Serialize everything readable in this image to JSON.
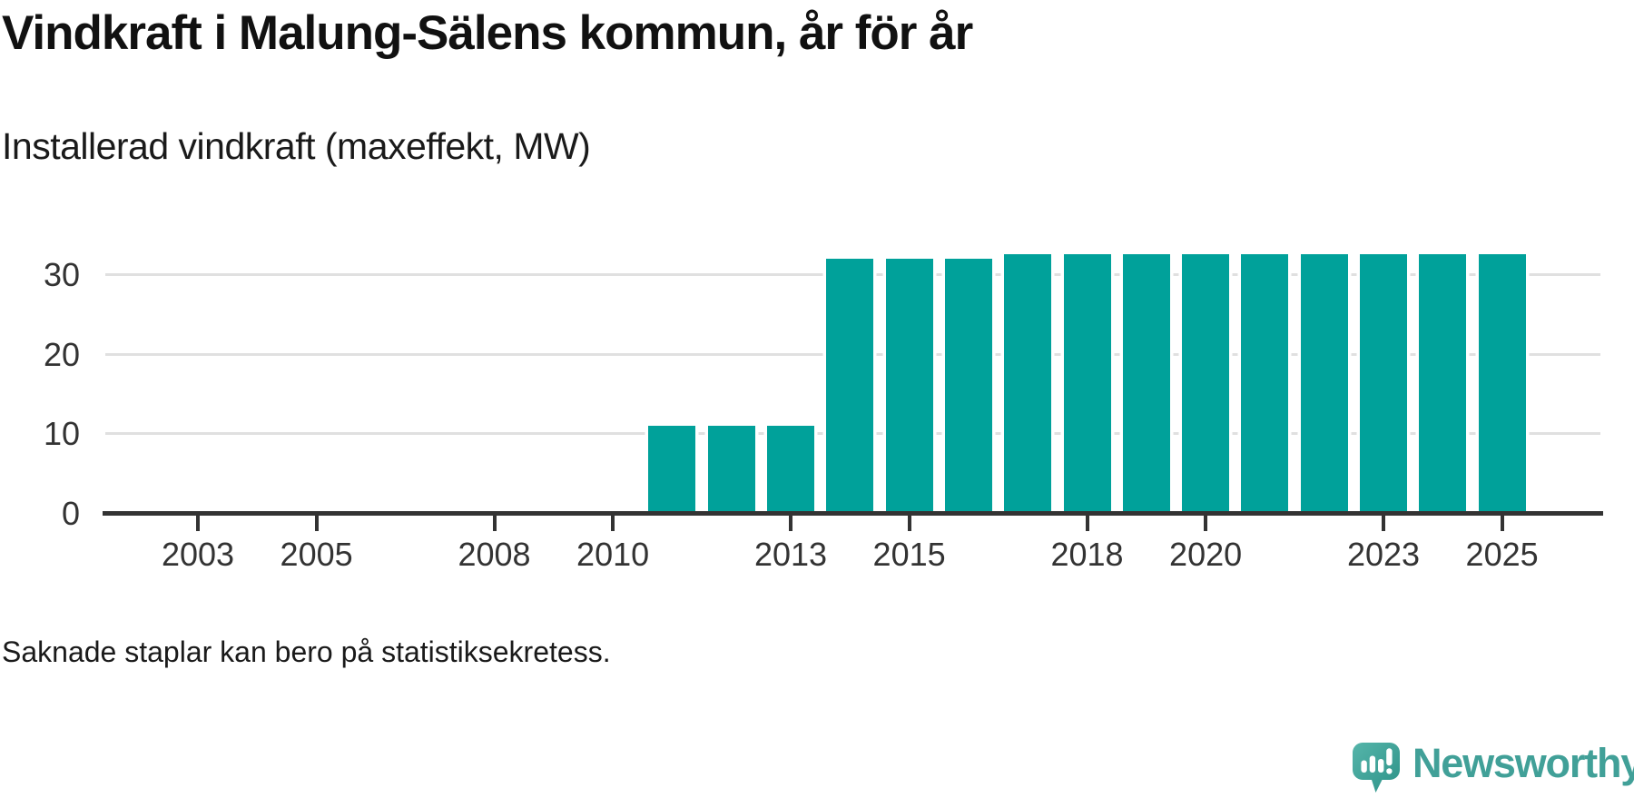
{
  "header": {
    "title": "Vindkraft i Malung-Sälens kommun, år för år",
    "subtitle": "Installerad vindkraft (maxeffekt, MW)"
  },
  "footer": {
    "note": "Saknade staplar kan bero på statistiksekretess.",
    "brand_name": "Newsworthy",
    "brand_icon": "newsworthy-speech-bubble-barchart-icon"
  },
  "colors": {
    "bar": "#00a19a",
    "axis": "#333333",
    "grid": "#e0e0e0",
    "text": "#1a1a1a",
    "brand_text": "#41a098",
    "brand_icon_top": "#55b5aa",
    "brand_icon_bottom": "#2e9288"
  },
  "chart_data": {
    "type": "bar",
    "title": "Vindkraft i Malung-Sälens kommun, år för år",
    "subtitle": "Installerad vindkraft (maxeffekt, MW)",
    "unit": "MW",
    "xlabel": "",
    "ylabel": "MW",
    "grid": "horizontal",
    "legend_position": "none",
    "x_range": [
      2001.5,
      2026.7
    ],
    "ylim": [
      0,
      36
    ],
    "y_ticks": [
      0,
      10,
      20,
      30
    ],
    "x_ticks": [
      2003,
      2005,
      2008,
      2010,
      2013,
      2015,
      2018,
      2020,
      2023,
      2025
    ],
    "missing_years": [
      2003,
      2004,
      2005,
      2006,
      2007,
      2008,
      2009,
      2010
    ],
    "bars": [
      {
        "year": 2011,
        "value": 10.8
      },
      {
        "year": 2012,
        "value": 10.8
      },
      {
        "year": 2013,
        "value": 10.8
      },
      {
        "year": 2014,
        "value": 32
      },
      {
        "year": 2015,
        "value": 32
      },
      {
        "year": 2016,
        "value": 32
      },
      {
        "year": 2017,
        "value": 32.6
      },
      {
        "year": 2018,
        "value": 32.6
      },
      {
        "year": 2019,
        "value": 32.6
      },
      {
        "year": 2020,
        "value": 32.6
      },
      {
        "year": 2021,
        "value": 32.6
      },
      {
        "year": 2022,
        "value": 32.6
      },
      {
        "year": 2023,
        "value": 32.6
      },
      {
        "year": 2024,
        "value": 32.6
      },
      {
        "year": 2025,
        "value": 32.6
      }
    ]
  }
}
